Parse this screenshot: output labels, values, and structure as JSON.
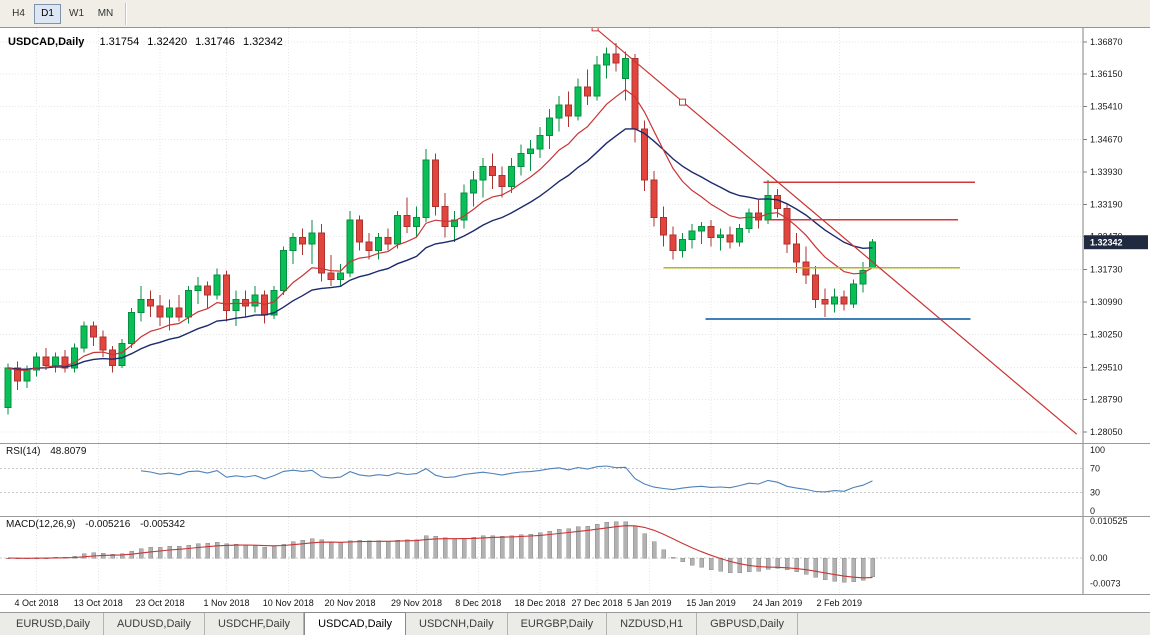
{
  "toolbar": {
    "timeframes": [
      {
        "label": "H4",
        "active": false
      },
      {
        "label": "D1",
        "active": true
      },
      {
        "label": "W1",
        "active": false
      },
      {
        "label": "MN",
        "active": false
      }
    ]
  },
  "header": {
    "symbol_label": "USDCAD,Daily",
    "open": "1.31754",
    "high": "1.32420",
    "low": "1.31746",
    "close": "1.32342"
  },
  "price_scale": {
    "labels": [
      "1.36870",
      "1.36150",
      "1.35410",
      "1.34670",
      "1.33930",
      "1.33190",
      "1.32470",
      "1.31730",
      "1.30990",
      "1.30250",
      "1.29510",
      "1.28790",
      "1.28050"
    ],
    "current_price": "1.32342"
  },
  "rsi_pane": {
    "label": "RSI(14)",
    "value": "48.8079",
    "scale_labels": [
      "100",
      "70",
      "30",
      "0"
    ],
    "scale_values": [
      100,
      70,
      30,
      0
    ],
    "levels": [
      70,
      30
    ]
  },
  "macd_pane": {
    "label": "MACD(12,26,9)",
    "main_value": "-0.005216",
    "signal_value": "-0.005342",
    "scale_labels": [
      "0.010525",
      "0.00",
      "-0.0073"
    ],
    "scale_values": [
      0.010525,
      0,
      -0.0073
    ]
  },
  "date_axis": {
    "labels": [
      {
        "text": "4 Oct 2018",
        "index": 3
      },
      {
        "text": "13 Oct 2018",
        "index": 9.5
      },
      {
        "text": "23 Oct 2018",
        "index": 16
      },
      {
        "text": "1 Nov 2018",
        "index": 23
      },
      {
        "text": "10 Nov 2018",
        "index": 29.5
      },
      {
        "text": "20 Nov 2018",
        "index": 36
      },
      {
        "text": "29 Nov 2018",
        "index": 43
      },
      {
        "text": "8 Dec 2018",
        "index": 49.5
      },
      {
        "text": "18 Dec 2018",
        "index": 56
      },
      {
        "text": "27 Dec 2018",
        "index": 62
      },
      {
        "text": "5 Jan 2019",
        "index": 67.5
      },
      {
        "text": "15 Jan 2019",
        "index": 74
      },
      {
        "text": "24 Jan 2019",
        "index": 81
      },
      {
        "text": "2 Feb 2019",
        "index": 87.5
      }
    ]
  },
  "tabs": [
    {
      "label": "EURUSD,Daily",
      "active": false
    },
    {
      "label": "AUDUSD,Daily",
      "active": false
    },
    {
      "label": "USDCHF,Daily",
      "active": false
    },
    {
      "label": "USDCAD,Daily",
      "active": true
    },
    {
      "label": "USDCNH,Daily",
      "active": false
    },
    {
      "label": "EURGBP,Daily",
      "active": false
    },
    {
      "label": "NZDUSD,H1",
      "active": false
    },
    {
      "label": "GBPUSD,Daily",
      "active": false
    }
  ],
  "chart_data": {
    "type": "candlestick",
    "symbol": "USDCAD",
    "timeframe": "Daily",
    "y_axis": {
      "top_price": 1.3687,
      "bottom_price": 1.2805
    },
    "colors": {
      "up": "#0bbf58",
      "up_border": "#078f41",
      "down": "#e2443e",
      "down_border": "#aa3330",
      "ma_fast": "#c93535",
      "ma_slow": "#1c2a6e",
      "trendline": "#c93535",
      "rsi": "#4d82bc",
      "macd_hist": "#b2b2b2",
      "macd_hist_border": "#8d8d8d",
      "macd_signal": "#c93535",
      "badge": "#1f2940"
    },
    "candles": [
      [
        1.286,
        1.296,
        1.2845,
        1.295
      ],
      [
        1.295,
        1.2965,
        1.29,
        1.292
      ],
      [
        1.292,
        1.2955,
        1.2905,
        1.2945
      ],
      [
        1.2945,
        1.2985,
        1.293,
        1.2975
      ],
      [
        1.2975,
        1.2995,
        1.2945,
        1.2955
      ],
      [
        1.2955,
        1.2985,
        1.294,
        1.2975
      ],
      [
        1.2975,
        1.299,
        1.294,
        1.295
      ],
      [
        1.295,
        1.3005,
        1.294,
        1.2995
      ],
      [
        1.2995,
        1.3055,
        1.2985,
        1.3045
      ],
      [
        1.3045,
        1.3055,
        1.3,
        1.302
      ],
      [
        1.302,
        1.3035,
        1.2975,
        1.299
      ],
      [
        1.299,
        1.3,
        1.294,
        1.2955
      ],
      [
        1.2955,
        1.3015,
        1.295,
        1.3005
      ],
      [
        1.3005,
        1.3085,
        1.2995,
        1.3075
      ],
      [
        1.3075,
        1.3135,
        1.3055,
        1.3105
      ],
      [
        1.3105,
        1.3125,
        1.3065,
        1.309
      ],
      [
        1.309,
        1.3115,
        1.3045,
        1.3065
      ],
      [
        1.3065,
        1.3105,
        1.3035,
        1.3085
      ],
      [
        1.3085,
        1.3115,
        1.3055,
        1.3065
      ],
      [
        1.3065,
        1.3135,
        1.305,
        1.3125
      ],
      [
        1.3125,
        1.3155,
        1.3095,
        1.3135
      ],
      [
        1.3135,
        1.3145,
        1.3085,
        1.3115
      ],
      [
        1.3115,
        1.3175,
        1.3105,
        1.316
      ],
      [
        1.316,
        1.317,
        1.3055,
        1.308
      ],
      [
        1.308,
        1.3125,
        1.3045,
        1.3105
      ],
      [
        1.3105,
        1.3125,
        1.3065,
        1.309
      ],
      [
        1.309,
        1.3135,
        1.3075,
        1.3115
      ],
      [
        1.3115,
        1.3125,
        1.305,
        1.307
      ],
      [
        1.307,
        1.3135,
        1.306,
        1.3125
      ],
      [
        1.3125,
        1.3225,
        1.3115,
        1.3215
      ],
      [
        1.3215,
        1.3255,
        1.3185,
        1.3245
      ],
      [
        1.3245,
        1.3265,
        1.3205,
        1.323
      ],
      [
        1.323,
        1.3285,
        1.3185,
        1.3255
      ],
      [
        1.3255,
        1.3275,
        1.3145,
        1.3165
      ],
      [
        1.3165,
        1.3205,
        1.3135,
        1.315
      ],
      [
        1.315,
        1.3185,
        1.3135,
        1.3165
      ],
      [
        1.3165,
        1.3305,
        1.3155,
        1.3285
      ],
      [
        1.3285,
        1.3295,
        1.3215,
        1.3235
      ],
      [
        1.3235,
        1.3255,
        1.3195,
        1.3215
      ],
      [
        1.3215,
        1.3255,
        1.3195,
        1.3245
      ],
      [
        1.3245,
        1.3265,
        1.3215,
        1.323
      ],
      [
        1.323,
        1.3305,
        1.322,
        1.3295
      ],
      [
        1.3295,
        1.3335,
        1.3255,
        1.327
      ],
      [
        1.327,
        1.3315,
        1.3245,
        1.329
      ],
      [
        1.329,
        1.3445,
        1.328,
        1.342
      ],
      [
        1.342,
        1.3435,
        1.3295,
        1.3315
      ],
      [
        1.3315,
        1.3345,
        1.3245,
        1.327
      ],
      [
        1.327,
        1.3305,
        1.3235,
        1.3285
      ],
      [
        1.3285,
        1.3365,
        1.3265,
        1.3345
      ],
      [
        1.3345,
        1.3395,
        1.3315,
        1.3375
      ],
      [
        1.3375,
        1.3425,
        1.3335,
        1.3405
      ],
      [
        1.3405,
        1.3435,
        1.3355,
        1.3385
      ],
      [
        1.3385,
        1.3405,
        1.3335,
        1.336
      ],
      [
        1.336,
        1.3425,
        1.3345,
        1.3405
      ],
      [
        1.3405,
        1.3455,
        1.3385,
        1.3435
      ],
      [
        1.3435,
        1.3465,
        1.3395,
        1.3445
      ],
      [
        1.3445,
        1.3495,
        1.3425,
        1.3475
      ],
      [
        1.3475,
        1.3535,
        1.3445,
        1.3515
      ],
      [
        1.3515,
        1.3565,
        1.3485,
        1.3545
      ],
      [
        1.3545,
        1.3575,
        1.3495,
        1.352
      ],
      [
        1.352,
        1.3605,
        1.351,
        1.3585
      ],
      [
        1.3585,
        1.3625,
        1.3545,
        1.3565
      ],
      [
        1.3565,
        1.3655,
        1.3555,
        1.3635
      ],
      [
        1.3635,
        1.3675,
        1.3605,
        1.366
      ],
      [
        1.366,
        1.3685,
        1.362,
        1.364
      ],
      [
        1.3605,
        1.3665,
        1.3555,
        1.365
      ],
      [
        1.365,
        1.366,
        1.346,
        1.349
      ],
      [
        1.349,
        1.351,
        1.335,
        1.3375
      ],
      [
        1.3375,
        1.3395,
        1.327,
        1.329
      ],
      [
        1.329,
        1.3315,
        1.3225,
        1.325
      ],
      [
        1.325,
        1.327,
        1.3195,
        1.3215
      ],
      [
        1.3215,
        1.3255,
        1.32,
        1.324
      ],
      [
        1.324,
        1.3275,
        1.322,
        1.326
      ],
      [
        1.326,
        1.328,
        1.323,
        1.327
      ],
      [
        1.327,
        1.3285,
        1.3225,
        1.3245
      ],
      [
        1.3245,
        1.3265,
        1.3215,
        1.325
      ],
      [
        1.325,
        1.327,
        1.322,
        1.3235
      ],
      [
        1.3235,
        1.3275,
        1.3225,
        1.3265
      ],
      [
        1.3265,
        1.331,
        1.3255,
        1.33
      ],
      [
        1.33,
        1.333,
        1.3265,
        1.3285
      ],
      [
        1.3285,
        1.3375,
        1.3275,
        1.334
      ],
      [
        1.334,
        1.3355,
        1.329,
        1.331
      ],
      [
        1.331,
        1.332,
        1.321,
        1.323
      ],
      [
        1.323,
        1.3255,
        1.3165,
        1.319
      ],
      [
        1.319,
        1.3225,
        1.314,
        1.316
      ],
      [
        1.316,
        1.318,
        1.3085,
        1.3105
      ],
      [
        1.3105,
        1.313,
        1.3065,
        1.3095
      ],
      [
        1.3095,
        1.313,
        1.3075,
        1.311
      ],
      [
        1.311,
        1.3125,
        1.308,
        1.3095
      ],
      [
        1.3095,
        1.315,
        1.3085,
        1.314
      ],
      [
        1.314,
        1.319,
        1.312,
        1.317
      ],
      [
        1.31754,
        1.3242,
        1.31746,
        1.32342
      ]
    ],
    "moving_averages": [
      {
        "name": "fast",
        "period": 10
      },
      {
        "name": "slow",
        "period": 21
      }
    ],
    "levels": [
      {
        "price": 1.337,
        "color": "#d03838",
        "width": 1.5,
        "from_index": 79.5,
        "to_index": 101.8
      },
      {
        "price": 1.3285,
        "color": "#d03838",
        "width": 1.1,
        "from_index": 80,
        "to_index": 100
      },
      {
        "price": 1.3176,
        "color": "#b5b51f",
        "width": 1.5,
        "from_index": 69,
        "to_index": 100.2
      },
      {
        "price": 1.306,
        "color": "#3f80b8",
        "width": 2,
        "from_index": 73.4,
        "to_index": 101.3
      }
    ],
    "trendline": {
      "start": {
        "index": 61.8,
        "price": 1.3719
      },
      "end": {
        "index": 112.5,
        "price": 1.28
      },
      "handles": [
        {
          "index": 61.8,
          "price": 1.3719
        },
        {
          "index": 71,
          "price": 1.3551
        }
      ]
    },
    "indicators": {
      "rsi": {
        "period": 14
      },
      "macd": {
        "fast": 12,
        "slow": 26,
        "signal": 9
      }
    }
  }
}
